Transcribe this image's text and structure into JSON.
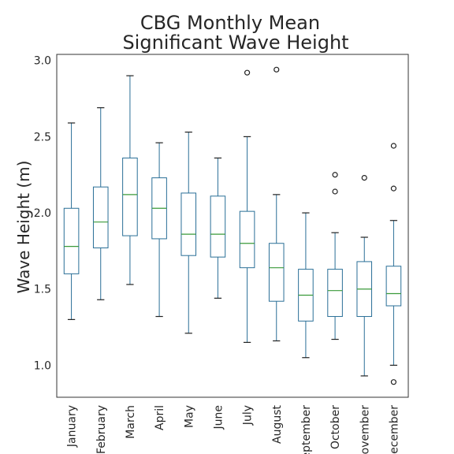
{
  "chart_data": {
    "type": "box",
    "title": [
      "CBG Monthly Mean",
      "Significant Wave Height"
    ],
    "xlabel": "",
    "ylabel": "Wave Height (m)",
    "ylim": [
      0.79,
      3.04
    ],
    "yticks": [
      "1.0",
      "1.5",
      "2.0",
      "2.5",
      "3.0"
    ],
    "grid": false,
    "colors": {
      "box": "#2a6f97",
      "median": "#3a9a3a",
      "axis": "#333333"
    },
    "categories": [
      "January",
      "February",
      "March",
      "April",
      "May",
      "June",
      "July",
      "August",
      "September",
      "October",
      "November",
      "December"
    ],
    "boxes": [
      {
        "whisker_low": 1.3,
        "q1": 1.6,
        "median": 1.78,
        "q3": 2.03,
        "whisker_high": 2.59,
        "outliers": []
      },
      {
        "whisker_low": 1.43,
        "q1": 1.77,
        "median": 1.94,
        "q3": 2.17,
        "whisker_high": 2.69,
        "outliers": []
      },
      {
        "whisker_low": 1.53,
        "q1": 1.85,
        "median": 2.12,
        "q3": 2.36,
        "whisker_high": 2.9,
        "outliers": []
      },
      {
        "whisker_low": 1.32,
        "q1": 1.83,
        "median": 2.03,
        "q3": 2.23,
        "whisker_high": 2.46,
        "outliers": []
      },
      {
        "whisker_low": 1.21,
        "q1": 1.72,
        "median": 1.86,
        "q3": 2.13,
        "whisker_high": 2.53,
        "outliers": []
      },
      {
        "whisker_low": 1.44,
        "q1": 1.71,
        "median": 1.86,
        "q3": 2.11,
        "whisker_high": 2.36,
        "outliers": []
      },
      {
        "whisker_low": 1.15,
        "q1": 1.64,
        "median": 1.8,
        "q3": 2.01,
        "whisker_high": 2.5,
        "outliers": [
          2.92
        ]
      },
      {
        "whisker_low": 1.16,
        "q1": 1.42,
        "median": 1.64,
        "q3": 1.8,
        "whisker_high": 2.12,
        "outliers": [
          2.94
        ]
      },
      {
        "whisker_low": 1.05,
        "q1": 1.29,
        "median": 1.46,
        "q3": 1.63,
        "whisker_high": 2.0,
        "outliers": []
      },
      {
        "whisker_low": 1.17,
        "q1": 1.32,
        "median": 1.49,
        "q3": 1.63,
        "whisker_high": 1.87,
        "outliers": [
          2.14,
          2.25
        ]
      },
      {
        "whisker_low": 0.93,
        "q1": 1.32,
        "median": 1.5,
        "q3": 1.68,
        "whisker_high": 1.84,
        "outliers": [
          2.23
        ]
      },
      {
        "whisker_low": 1.0,
        "q1": 1.39,
        "median": 1.47,
        "q3": 1.65,
        "whisker_high": 1.95,
        "outliers": [
          0.89,
          2.16,
          2.44
        ]
      }
    ]
  }
}
